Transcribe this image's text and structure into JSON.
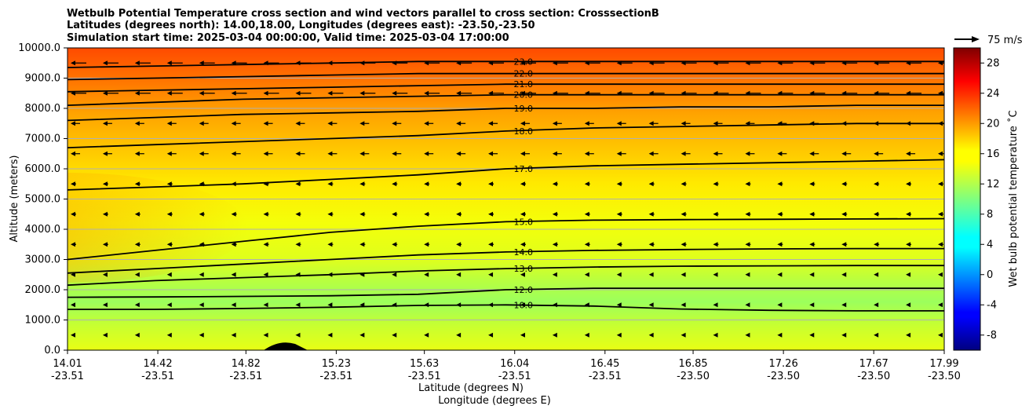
{
  "chart_data": {
    "type": "heatmap",
    "title_lines": [
      "Wetbulb Potential Temperature cross section and wind vectors parallel to cross section: CrosssectionB",
      "Latitudes (degrees north): 14.00,18.00, Longitudes (degrees east): -23.50,-23.50",
      "Simulation start time: 2025-03-04 00:00:00, Valid time: 2025-03-04 17:00:00"
    ],
    "xlabel_lat": "Latitude (degrees N)",
    "xlabel_lon": "Longitude (degrees E)",
    "ylabel": "Altitude (meters)",
    "xlim": [
      14.01,
      17.99
    ],
    "ylim": [
      0,
      10000
    ],
    "x_ticks": [
      {
        "lat": "14.01",
        "lon": "-23.51",
        "v": 14.01
      },
      {
        "lat": "14.42",
        "lon": "-23.51",
        "v": 14.42
      },
      {
        "lat": "14.82",
        "lon": "-23.51",
        "v": 14.82
      },
      {
        "lat": "15.23",
        "lon": "-23.51",
        "v": 15.23
      },
      {
        "lat": "15.63",
        "lon": "-23.51",
        "v": 15.63
      },
      {
        "lat": "16.04",
        "lon": "-23.51",
        "v": 16.04
      },
      {
        "lat": "16.45",
        "lon": "-23.51",
        "v": 16.45
      },
      {
        "lat": "16.85",
        "lon": "-23.50",
        "v": 16.85
      },
      {
        "lat": "17.26",
        "lon": "-23.50",
        "v": 17.26
      },
      {
        "lat": "17.67",
        "lon": "-23.50",
        "v": 17.67
      },
      {
        "lat": "17.99",
        "lon": "-23.50",
        "v": 17.99
      }
    ],
    "y_ticks": [
      "0.0",
      "1000.0",
      "2000.0",
      "3000.0",
      "4000.0",
      "5000.0",
      "6000.0",
      "7000.0",
      "8000.0",
      "9000.0",
      "10000.0"
    ],
    "colorbar": {
      "label": "Wet bulb potential temperature ˚C",
      "ticks": [
        "-8",
        "-4",
        "0",
        "4",
        "8",
        "12",
        "16",
        "20",
        "24",
        "28"
      ],
      "range": [
        -10,
        30
      ],
      "colormap": "jet"
    },
    "contour_levels": [
      {
        "level": 10.0,
        "y": [
          1350,
          1350,
          1380,
          1420,
          1480,
          1500,
          1460,
          1360,
          1320,
          1300,
          1300
        ],
        "label": "10.0"
      },
      {
        "level": 12.0,
        "y": [
          1750,
          1760,
          1780,
          1800,
          1850,
          2000,
          2050,
          2050,
          2050,
          2050,
          2050
        ],
        "label": "12.0"
      },
      {
        "level": 13.0,
        "y": [
          2150,
          2300,
          2400,
          2500,
          2620,
          2700,
          2750,
          2780,
          2790,
          2800,
          2800
        ],
        "label": "13.0"
      },
      {
        "level": 14.0,
        "y": [
          2550,
          2700,
          2850,
          3000,
          3150,
          3250,
          3300,
          3330,
          3350,
          3360,
          3360
        ],
        "label": "14.0"
      },
      {
        "level": 15.0,
        "y": [
          3000,
          3300,
          3600,
          3900,
          4100,
          4250,
          4300,
          4320,
          4330,
          4340,
          4350
        ],
        "label": "15.0"
      },
      {
        "level": 17.0,
        "y": [
          5300,
          5400,
          5500,
          5650,
          5800,
          6000,
          6100,
          6150,
          6200,
          6250,
          6300
        ],
        "label": "17.0"
      },
      {
        "level": 18.0,
        "y": [
          6700,
          6800,
          6900,
          7000,
          7100,
          7250,
          7350,
          7400,
          7450,
          7500,
          7500
        ],
        "label": "18.0"
      },
      {
        "level": 19.0,
        "y": [
          7600,
          7700,
          7800,
          7850,
          7900,
          8000,
          8000,
          8050,
          8050,
          8100,
          8100
        ],
        "label": "19.0"
      },
      {
        "level": 20.0,
        "y": [
          8100,
          8200,
          8300,
          8350,
          8400,
          8450,
          8450,
          8450,
          8450,
          8450,
          8450
        ],
        "label": "20.0"
      },
      {
        "level": 21.0,
        "y": [
          8550,
          8600,
          8650,
          8700,
          8750,
          8800,
          8800,
          8800,
          8800,
          8800,
          8800
        ],
        "label": "21.0"
      },
      {
        "level": 22.0,
        "y": [
          8950,
          9000,
          9050,
          9100,
          9150,
          9150,
          9150,
          9150,
          9150,
          9150,
          9150
        ],
        "label": "22.0"
      },
      {
        "level": 23.0,
        "y": [
          9350,
          9400,
          9450,
          9500,
          9550,
          9550,
          9550,
          9550,
          9550,
          9550,
          9550
        ],
        "label": "23.0"
      }
    ],
    "wind_vectors": {
      "reference": "75 m/s",
      "direction": "toward decreasing latitude (southward)"
    },
    "colors": {
      "grid": "#b0b0b0",
      "contour": "#000000",
      "arrow": "#000000"
    }
  }
}
